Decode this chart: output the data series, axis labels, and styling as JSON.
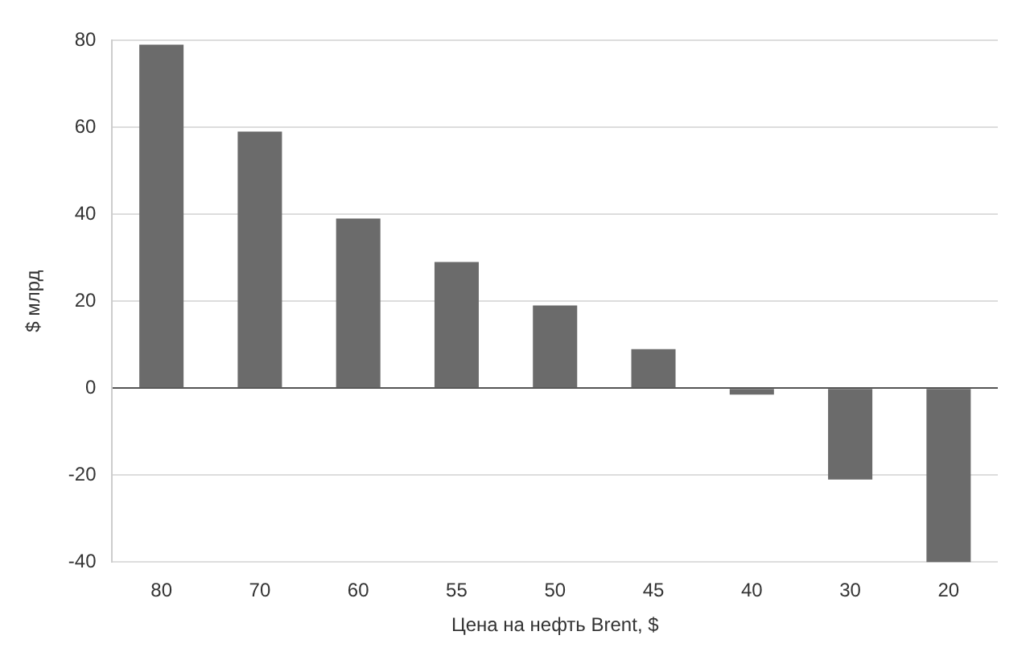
{
  "chart_data": {
    "type": "bar",
    "xlabel": "Цена на нефть Brent, $",
    "ylabel": "$ млрд",
    "categories": [
      "80",
      "70",
      "60",
      "55",
      "50",
      "45",
      "40",
      "30",
      "20"
    ],
    "values": [
      79,
      59,
      39,
      29,
      19,
      9,
      -1.5,
      -21,
      -40
    ],
    "color": "#6b6b6b",
    "ylim": [
      -40,
      80
    ],
    "yticks": [
      -40,
      -20,
      0,
      20,
      40,
      60,
      80
    ],
    "grid": "y"
  }
}
